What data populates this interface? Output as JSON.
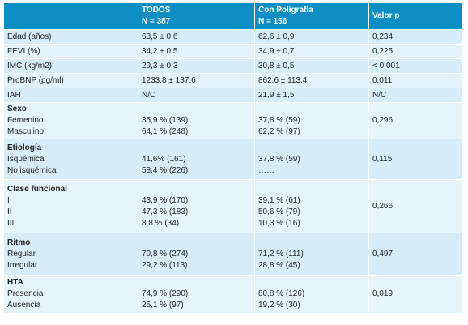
{
  "header": {
    "col0": "",
    "col1_line1": "TODOS",
    "col1_line2": "N = 387",
    "col2_line1": "Con Poligrafía",
    "col2_line2": "N = 156",
    "col3": "Valor p"
  },
  "rows": [
    {
      "label": "Edad (años)",
      "todos": "63,5 ± 0,6",
      "poli": "62,6 ± 0,9",
      "p": "0,234"
    },
    {
      "label": "FEVI (%)",
      "todos": "34,2 ± 0,5",
      "poli": "34,9 ± 0,7",
      "p": "0,225"
    },
    {
      "label": "IMC (kg/m2)",
      "todos": "29,3 ± 0,3",
      "poli": "30,8 ± 0,5",
      "p": "< 0,001"
    },
    {
      "label": "ProBNP (pg/ml)",
      "todos": "1233,8 ± 137,6",
      "poli": "862,6 ± 113,4",
      "p": "0,011"
    },
    {
      "label": "IAH",
      "todos": "N/C",
      "poli": "21,9 ± 1,5",
      "p": "N/C"
    }
  ],
  "groups": [
    {
      "title": "Sexo",
      "items": [
        {
          "label": "Femenino",
          "todos": "35,9 % (139)",
          "poli": "37,8 % (59)"
        },
        {
          "label": "Masculino",
          "todos": "64,1 % (248)",
          "poli": "62,2 % (97)"
        }
      ],
      "p": "0,296"
    },
    {
      "title": "Etiología",
      "items": [
        {
          "label": "Isquémica",
          "todos": "41,6% (161)",
          "poli": "37,8 % (59)"
        },
        {
          "label": "No isquémica",
          "todos": "58,4 % (226)",
          "poli": "……"
        }
      ],
      "p": "0,115"
    },
    {
      "title": "Clase funcional",
      "items": [
        {
          "label": "I",
          "todos": "43,9 % (170)",
          "poli": "39,1 % (61)"
        },
        {
          "label": "II",
          "todos": "47,3 % (183)",
          "poli": "50,6 % (79)"
        },
        {
          "label": "III",
          "todos": "8,8 % (34)",
          "poli": "10,3 % (16)"
        }
      ],
      "p": "0,266"
    },
    {
      "title": "Ritmo",
      "items": [
        {
          "label": "Regular",
          "todos": "70,8 % (274)",
          "poli": "71,2 % (111)"
        },
        {
          "label": "Irregular",
          "todos": "29,2 % (113)",
          "poli": "28,8 % (45)"
        }
      ],
      "p": "0,497"
    },
    {
      "title": "HTA",
      "items": [
        {
          "label": "Presencia",
          "todos": "74,9 % (290)",
          "poli": "80,8 % (126)"
        },
        {
          "label": "Ausencia",
          "todos": "25,1 % (97)",
          "poli": "19,2 % (30)"
        }
      ],
      "p": "0,019"
    }
  ]
}
